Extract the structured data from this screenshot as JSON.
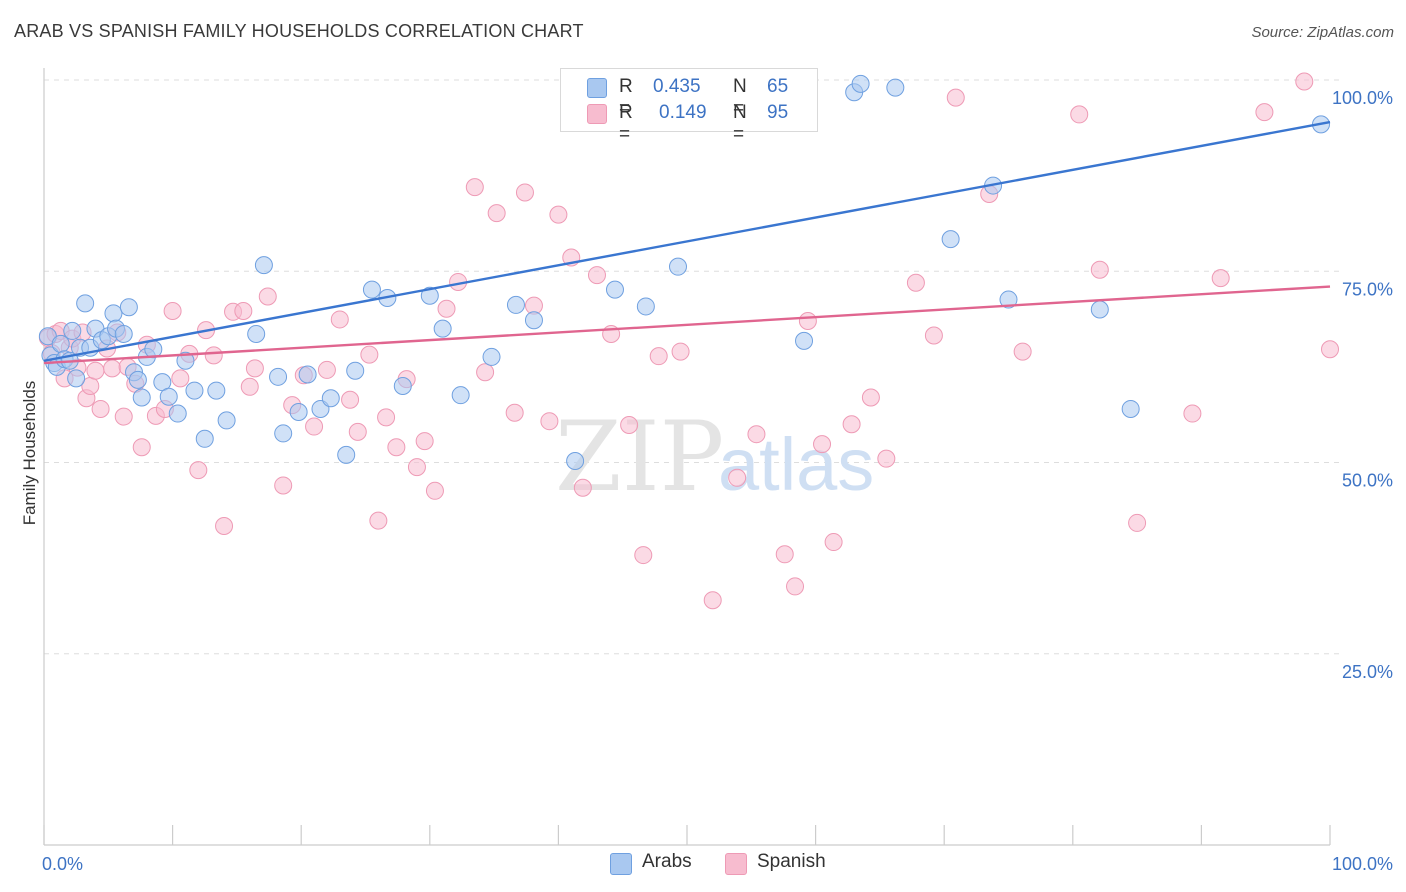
{
  "title": "ARAB VS SPANISH FAMILY HOUSEHOLDS CORRELATION CHART",
  "source": "Source: ZipAtlas.com",
  "watermark": {
    "zip": "ZIP",
    "atlas": "atlas"
  },
  "legend": {
    "arabs": {
      "r_label": "R =",
      "r_value": "0.435",
      "n_label": "N =",
      "n_value": "65"
    },
    "spanish": {
      "r_label": "R =",
      "r_value": "0.149",
      "n_label": "N =",
      "n_value": "95"
    }
  },
  "colors": {
    "arabs_fill": "#a9c8f0",
    "arabs_stroke": "#6fa0e0",
    "arabs_line": "#3a76d0",
    "spanish_fill": "#f7bccf",
    "spanish_stroke": "#ee9ab5",
    "spanish_line": "#e0658f",
    "tick_text": "#3d73c4",
    "grid": "#dddddd"
  },
  "chart_data": {
    "type": "scatter",
    "title": "ARAB VS SPANISH FAMILY HOUSEHOLDS CORRELATION CHART",
    "xlabel": "",
    "ylabel": "Family Households",
    "xlim": [
      0,
      100
    ],
    "ylim": [
      0,
      100
    ],
    "x_tick_labels": [
      "0.0%",
      "100.0%"
    ],
    "y_ticks": [
      25,
      50,
      75,
      100
    ],
    "y_tick_labels": [
      "25.0%",
      "50.0%",
      "75.0%",
      "100.0%"
    ],
    "grid": true,
    "series": [
      {
        "name": "Arabs",
        "r": 0.435,
        "n": 65,
        "trend": {
          "x": [
            0,
            100
          ],
          "y": [
            63.3,
            94.5
          ]
        },
        "points": [
          [
            0.3,
            66.5
          ],
          [
            0.5,
            64.0
          ],
          [
            0.8,
            63.0
          ],
          [
            1.0,
            62.5
          ],
          [
            1.3,
            65.5
          ],
          [
            1.6,
            63.5
          ],
          [
            2.0,
            63.3
          ],
          [
            2.2,
            67.2
          ],
          [
            2.5,
            61.0
          ],
          [
            2.8,
            65.0
          ],
          [
            3.2,
            70.8
          ],
          [
            3.6,
            65.0
          ],
          [
            4.0,
            67.5
          ],
          [
            4.5,
            66.0
          ],
          [
            5.0,
            66.5
          ],
          [
            5.4,
            69.5
          ],
          [
            5.6,
            67.5
          ],
          [
            6.2,
            66.8
          ],
          [
            6.6,
            70.3
          ],
          [
            7.0,
            61.8
          ],
          [
            7.3,
            60.8
          ],
          [
            7.6,
            58.5
          ],
          [
            8.0,
            63.8
          ],
          [
            8.5,
            64.8
          ],
          [
            9.2,
            60.5
          ],
          [
            9.7,
            58.6
          ],
          [
            10.4,
            56.4
          ],
          [
            11.0,
            63.3
          ],
          [
            11.7,
            59.4
          ],
          [
            12.5,
            53.1
          ],
          [
            13.4,
            59.4
          ],
          [
            14.2,
            55.5
          ],
          [
            16.5,
            66.8
          ],
          [
            17.1,
            75.8
          ],
          [
            18.2,
            61.2
          ],
          [
            18.6,
            53.8
          ],
          [
            19.8,
            56.6
          ],
          [
            20.5,
            61.5
          ],
          [
            21.5,
            57.0
          ],
          [
            22.3,
            58.4
          ],
          [
            23.5,
            51.0
          ],
          [
            24.2,
            62.0
          ],
          [
            25.5,
            72.6
          ],
          [
            26.7,
            71.5
          ],
          [
            27.9,
            60.0
          ],
          [
            30.0,
            71.8
          ],
          [
            31.0,
            67.5
          ],
          [
            32.4,
            58.8
          ],
          [
            34.8,
            63.8
          ],
          [
            36.7,
            70.6
          ],
          [
            38.1,
            68.6
          ],
          [
            41.3,
            50.2
          ],
          [
            44.4,
            72.6
          ],
          [
            46.8,
            70.4
          ],
          [
            49.3,
            75.6
          ],
          [
            59.1,
            65.9
          ],
          [
            63.0,
            98.4
          ],
          [
            63.5,
            99.5
          ],
          [
            66.2,
            99.0
          ],
          [
            70.5,
            79.2
          ],
          [
            73.8,
            86.2
          ],
          [
            75.0,
            71.3
          ],
          [
            82.1,
            70.0
          ],
          [
            84.5,
            57.0
          ],
          [
            99.3,
            94.2
          ]
        ]
      },
      {
        "name": "Spanish",
        "r": 0.149,
        "n": 95,
        "trend": {
          "x": [
            0,
            100
          ],
          "y": [
            63.0,
            73.0
          ]
        },
        "points": [
          [
            0.3,
            66.3
          ],
          [
            0.6,
            64.3
          ],
          [
            0.9,
            66.8
          ],
          [
            1.3,
            67.2
          ],
          [
            1.6,
            61.0
          ],
          [
            2.0,
            65.0
          ],
          [
            2.2,
            66.2
          ],
          [
            2.6,
            62.4
          ],
          [
            3.0,
            67.0
          ],
          [
            3.3,
            58.4
          ],
          [
            3.6,
            60.0
          ],
          [
            4.0,
            62.0
          ],
          [
            4.4,
            57.0
          ],
          [
            4.9,
            64.9
          ],
          [
            5.3,
            62.3
          ],
          [
            5.7,
            67.0
          ],
          [
            6.2,
            56.0
          ],
          [
            6.5,
            62.5
          ],
          [
            7.1,
            60.3
          ],
          [
            7.6,
            52.0
          ],
          [
            8.0,
            65.4
          ],
          [
            8.7,
            56.1
          ],
          [
            9.4,
            57.0
          ],
          [
            10.0,
            69.8
          ],
          [
            10.6,
            61.0
          ],
          [
            11.3,
            64.2
          ],
          [
            12.0,
            49.0
          ],
          [
            12.6,
            67.3
          ],
          [
            13.2,
            64.0
          ],
          [
            14.0,
            41.7
          ],
          [
            14.7,
            69.7
          ],
          [
            15.5,
            69.8
          ],
          [
            16.0,
            59.9
          ],
          [
            16.4,
            62.3
          ],
          [
            17.4,
            71.7
          ],
          [
            18.6,
            47.0
          ],
          [
            19.3,
            57.5
          ],
          [
            20.2,
            61.4
          ],
          [
            21.0,
            54.7
          ],
          [
            22.0,
            62.1
          ],
          [
            23.0,
            68.7
          ],
          [
            23.8,
            58.2
          ],
          [
            24.4,
            54.0
          ],
          [
            25.3,
            64.1
          ],
          [
            26.0,
            42.4
          ],
          [
            26.6,
            55.9
          ],
          [
            27.4,
            52.0
          ],
          [
            28.2,
            60.9
          ],
          [
            29.0,
            49.4
          ],
          [
            29.6,
            52.8
          ],
          [
            30.4,
            46.3
          ],
          [
            31.3,
            70.1
          ],
          [
            32.2,
            73.6
          ],
          [
            33.5,
            86.0
          ],
          [
            34.3,
            61.8
          ],
          [
            35.2,
            82.6
          ],
          [
            36.6,
            56.5
          ],
          [
            37.4,
            85.3
          ],
          [
            38.1,
            70.5
          ],
          [
            39.3,
            55.4
          ],
          [
            40.0,
            82.4
          ],
          [
            41.0,
            76.8
          ],
          [
            41.9,
            46.7
          ],
          [
            43.0,
            74.5
          ],
          [
            44.1,
            66.8
          ],
          [
            45.5,
            54.9
          ],
          [
            46.6,
            37.9
          ],
          [
            47.8,
            63.9
          ],
          [
            48.6,
            98.6
          ],
          [
            49.5,
            64.5
          ],
          [
            50.7,
            98.4
          ],
          [
            52.0,
            32.0
          ],
          [
            53.9,
            48.0
          ],
          [
            55.4,
            53.7
          ],
          [
            57.6,
            38.0
          ],
          [
            58.4,
            33.8
          ],
          [
            59.4,
            68.5
          ],
          [
            60.5,
            52.4
          ],
          [
            61.4,
            39.6
          ],
          [
            62.8,
            55.0
          ],
          [
            64.3,
            58.5
          ],
          [
            65.5,
            50.5
          ],
          [
            67.8,
            73.5
          ],
          [
            69.2,
            66.6
          ],
          [
            70.9,
            97.7
          ],
          [
            73.5,
            85.1
          ],
          [
            76.1,
            64.5
          ],
          [
            80.5,
            95.5
          ],
          [
            82.1,
            75.2
          ],
          [
            85.0,
            42.1
          ],
          [
            89.3,
            56.4
          ],
          [
            91.5,
            74.1
          ],
          [
            94.9,
            95.8
          ],
          [
            98.0,
            99.8
          ],
          [
            100.0,
            64.8
          ]
        ]
      }
    ]
  },
  "bottom_legend": {
    "arabs_label": "Arabs",
    "spanish_label": "Spanish"
  }
}
